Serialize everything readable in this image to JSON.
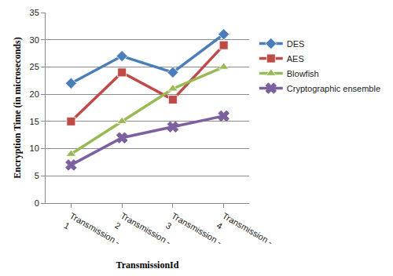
{
  "chart_data": {
    "type": "line",
    "x_label": "TransmissionId",
    "y_label": "Encryption Time (in microseconds)",
    "categories": [
      "Transmission - 1",
      "Transmission - 2",
      "Transmission - 3",
      "Transmission - 4"
    ],
    "series": [
      {
        "name": "DES",
        "color": "#4a7ebb",
        "marker": "diamond",
        "values": [
          22,
          27,
          24,
          31
        ]
      },
      {
        "name": "AES",
        "color": "#be4b48",
        "marker": "square",
        "values": [
          15,
          24,
          19,
          29
        ]
      },
      {
        "name": "Blowfish",
        "color": "#98b954",
        "marker": "triangle-up",
        "values": [
          9,
          15,
          21,
          25
        ]
      },
      {
        "name": "Cryptographic ensemble",
        "color": "#7d60a0",
        "marker": "x",
        "values": [
          7,
          12,
          14,
          16
        ]
      }
    ],
    "ylim": [
      0,
      35
    ],
    "yticks": [
      0,
      5,
      10,
      15,
      20,
      25,
      30,
      35
    ],
    "grid": true,
    "legend": "right"
  }
}
